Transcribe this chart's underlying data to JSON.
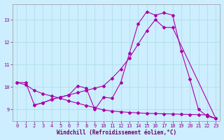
{
  "xlabel": "Windchill (Refroidissement éolien,°C)",
  "xlim": [
    -0.5,
    23.5
  ],
  "ylim": [
    8.5,
    13.7
  ],
  "yticks": [
    9,
    10,
    11,
    12,
    13
  ],
  "xticks": [
    0,
    1,
    2,
    3,
    4,
    5,
    6,
    7,
    8,
    9,
    10,
    11,
    12,
    13,
    14,
    15,
    16,
    17,
    18,
    19,
    20,
    21,
    22,
    23
  ],
  "bg_color": "#cceeff",
  "line_color": "#aa00aa",
  "grid_color": "#aadddd",
  "series1_x": [
    0,
    1,
    2,
    3,
    4,
    5,
    6,
    7,
    8,
    9,
    10,
    11,
    12,
    13,
    14,
    15,
    16,
    17,
    18,
    19,
    20,
    21,
    22,
    23
  ],
  "series1_y": [
    10.2,
    10.2,
    9.2,
    9.3,
    9.45,
    9.55,
    9.65,
    10.05,
    9.95,
    9.0,
    9.55,
    9.5,
    10.2,
    11.5,
    12.8,
    13.35,
    13.2,
    13.3,
    13.2,
    11.6,
    10.35,
    9.0,
    8.7,
    8.6
  ],
  "series2_x": [
    2,
    3,
    4,
    5,
    6,
    7,
    8,
    9,
    10,
    11,
    12,
    13,
    14,
    15,
    16,
    17,
    18,
    23
  ],
  "series2_y": [
    9.2,
    9.3,
    9.45,
    9.55,
    9.65,
    9.75,
    9.85,
    9.95,
    10.05,
    10.4,
    10.8,
    11.3,
    11.9,
    12.5,
    13.0,
    12.65,
    12.65,
    8.6
  ],
  "series3_x": [
    0,
    1,
    2,
    3,
    4,
    5,
    6,
    7,
    8,
    9,
    10,
    11,
    12,
    13,
    14,
    15,
    16,
    17,
    18,
    19,
    20,
    21,
    22,
    23
  ],
  "series3_y": [
    10.2,
    10.1,
    9.85,
    9.7,
    9.6,
    9.5,
    9.38,
    9.28,
    9.18,
    9.08,
    8.98,
    8.93,
    8.9,
    8.87,
    8.85,
    8.83,
    8.82,
    8.81,
    8.8,
    8.79,
    8.78,
    8.77,
    8.76,
    8.6
  ]
}
